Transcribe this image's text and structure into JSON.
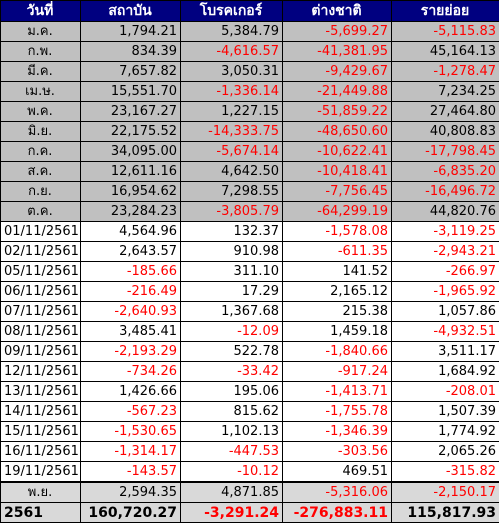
{
  "headers": [
    "วันที่",
    "สถาบัน",
    "โบรคเกอร์",
    "ต่างชาติ",
    "รายย่อย"
  ],
  "monthly": [
    {
      "date": "ม.ค.",
      "values": [
        "1,794.21",
        "5,384.79",
        "-5,699.27",
        "-5,115.83"
      ]
    },
    {
      "date": "ก.พ.",
      "values": [
        "834.39",
        "-4,616.57",
        "-41,381.95",
        "45,164.13"
      ]
    },
    {
      "date": "มี.ค.",
      "values": [
        "7,657.82",
        "3,050.31",
        "-9,429.67",
        "-1,278.47"
      ]
    },
    {
      "date": "เม.ษ.",
      "values": [
        "15,551.70",
        "-1,336.14",
        "-21,449.88",
        "7,234.25"
      ]
    },
    {
      "date": "พ.ค.",
      "values": [
        "23,167.27",
        "1,227.15",
        "-51,859.22",
        "27,464.80"
      ]
    },
    {
      "date": "มิ.ย.",
      "values": [
        "22,175.52",
        "-14,333.75",
        "-48,650.60",
        "40,808.83"
      ]
    },
    {
      "date": "ก.ค.",
      "values": [
        "34,095.00",
        "-5,674.14",
        "-10,622.41",
        "-17,798.45"
      ]
    },
    {
      "date": "ส.ค.",
      "values": [
        "12,611.16",
        "4,642.50",
        "-10,418.41",
        "-6,835.20"
      ]
    },
    {
      "date": "ก.ย.",
      "values": [
        "16,954.62",
        "7,298.55",
        "-7,756.45",
        "-16,496.72"
      ]
    },
    {
      "date": "ต.ค.",
      "values": [
        "23,284.23",
        "-3,805.79",
        "-64,299.19",
        "44,820.76"
      ]
    }
  ],
  "daily": [
    {
      "date": "01/11/2561",
      "values": [
        "4,564.96",
        "132.37",
        "-1,578.08",
        "-3,119.25"
      ]
    },
    {
      "date": "02/11/2561",
      "values": [
        "2,643.57",
        "910.98",
        "-611.35",
        "-2,943.21"
      ]
    },
    {
      "date": "05/11/2561",
      "values": [
        "-185.66",
        "311.10",
        "141.52",
        "-266.97"
      ]
    },
    {
      "date": "06/11/2561",
      "values": [
        "-216.49",
        "17.29",
        "2,165.12",
        "-1,965.92"
      ]
    },
    {
      "date": "07/11/2561",
      "values": [
        "-2,640.93",
        "1,367.68",
        "215.38",
        "1,057.86"
      ]
    },
    {
      "date": "08/11/2561",
      "values": [
        "3,485.41",
        "-12.09",
        "1,459.18",
        "-4,932.51"
      ]
    },
    {
      "date": "09/11/2561",
      "values": [
        "-2,193.29",
        "522.78",
        "-1,840.66",
        "3,511.17"
      ]
    },
    {
      "date": "12/11/2561",
      "values": [
        "-734.26",
        "-33.42",
        "-917.24",
        "1,684.92"
      ]
    },
    {
      "date": "13/11/2561",
      "values": [
        "1,426.66",
        "195.06",
        "-1,413.71",
        "-208.01"
      ]
    },
    {
      "date": "14/11/2561",
      "values": [
        "-567.23",
        "815.62",
        "-1,755.78",
        "1,507.39"
      ]
    },
    {
      "date": "15/11/2561",
      "values": [
        "-1,530.65",
        "1,102.13",
        "-1,346.39",
        "1,774.92"
      ]
    },
    {
      "date": "16/11/2561",
      "values": [
        "-1,314.17",
        "-447.53",
        "-303.56",
        "2,065.26"
      ]
    },
    {
      "date": "19/11/2561",
      "values": [
        "-143.57",
        "-10.12",
        "469.51",
        "-315.82"
      ]
    }
  ],
  "month_summary": {
    "date": "พ.ย.",
    "values": [
      "2,594.35",
      "4,871.85",
      "-5,316.06",
      "-2,150.17"
    ]
  },
  "year_total": {
    "date": "2561",
    "values": [
      "160,720.27",
      "-3,291.24",
      "-276,883.11",
      "115,817.93"
    ]
  },
  "colors": {
    "header_bg": "#000080",
    "header_text": "#ffffff",
    "negative": "#ff0000",
    "month_row_bg": "#c0c0c0"
  }
}
